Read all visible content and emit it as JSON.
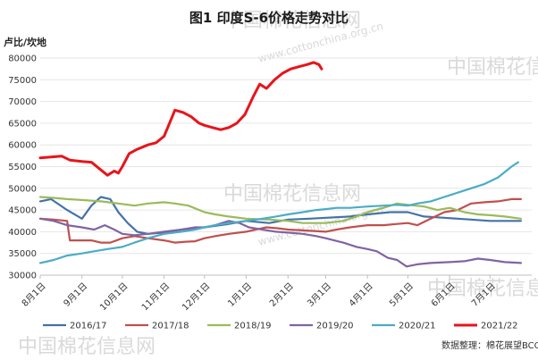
{
  "title": "图1 印度S-6价格走势对比",
  "unit_label": "卢比/坎地",
  "source": "数据整理：棉花展望BCO",
  "watermark": {
    "cn": "中国棉花信息网",
    "url": "www.cottonchina.org.cn"
  },
  "chart_data": {
    "type": "line",
    "title": "图1 印度S-6价格走势对比",
    "ylabel": "卢比/坎地",
    "ylim": [
      30000,
      80000
    ],
    "yticks": [
      30000,
      35000,
      40000,
      45000,
      50000,
      55000,
      60000,
      65000,
      70000,
      75000,
      80000
    ],
    "x_range_days": [
      0,
      365
    ],
    "x_ticks": [
      {
        "label": "8月1日",
        "day": 0
      },
      {
        "label": "9月1日",
        "day": 31
      },
      {
        "label": "10月1日",
        "day": 61
      },
      {
        "label": "11月1日",
        "day": 92
      },
      {
        "label": "12月1日",
        "day": 122
      },
      {
        "label": "1月1日",
        "day": 153
      },
      {
        "label": "2月1日",
        "day": 184
      },
      {
        "label": "3月1日",
        "day": 212
      },
      {
        "label": "4月1日",
        "day": 243
      },
      {
        "label": "5月1日",
        "day": 273
      },
      {
        "label": "6月1日",
        "day": 304
      },
      {
        "label": "7月1日",
        "day": 334
      }
    ],
    "legend_position": "bottom",
    "series": [
      {
        "name": "2016/17",
        "color": "#4472a8",
        "width": 2.2,
        "points": [
          [
            0,
            47000
          ],
          [
            8,
            47500
          ],
          [
            20,
            45000
          ],
          [
            31,
            43000
          ],
          [
            38,
            46000
          ],
          [
            45,
            48000
          ],
          [
            52,
            47500
          ],
          [
            58,
            44500
          ],
          [
            65,
            42000
          ],
          [
            72,
            40000
          ],
          [
            80,
            39500
          ],
          [
            92,
            39800
          ],
          [
            105,
            40500
          ],
          [
            122,
            41000
          ],
          [
            140,
            41800
          ],
          [
            153,
            42500
          ],
          [
            170,
            42000
          ],
          [
            184,
            42800
          ],
          [
            200,
            43000
          ],
          [
            212,
            43200
          ],
          [
            230,
            43500
          ],
          [
            243,
            44000
          ],
          [
            260,
            44500
          ],
          [
            273,
            44500
          ],
          [
            285,
            43500
          ],
          [
            300,
            43200
          ],
          [
            310,
            43000
          ],
          [
            320,
            42800
          ],
          [
            334,
            42500
          ],
          [
            350,
            42500
          ],
          [
            357,
            42500
          ]
        ]
      },
      {
        "name": "2017/18",
        "color": "#c0504d",
        "width": 2.2,
        "points": [
          [
            0,
            43000
          ],
          [
            10,
            42800
          ],
          [
            20,
            42500
          ],
          [
            22,
            38000
          ],
          [
            31,
            38000
          ],
          [
            38,
            38000
          ],
          [
            45,
            37500
          ],
          [
            52,
            37500
          ],
          [
            61,
            38500
          ],
          [
            70,
            39000
          ],
          [
            80,
            38500
          ],
          [
            92,
            38000
          ],
          [
            100,
            37500
          ],
          [
            108,
            37700
          ],
          [
            115,
            37800
          ],
          [
            122,
            38500
          ],
          [
            130,
            39000
          ],
          [
            140,
            39500
          ],
          [
            153,
            40000
          ],
          [
            160,
            40500
          ],
          [
            168,
            41000
          ],
          [
            176,
            40800
          ],
          [
            184,
            40500
          ],
          [
            195,
            40300
          ],
          [
            212,
            40000
          ],
          [
            220,
            40500
          ],
          [
            230,
            41000
          ],
          [
            243,
            41500
          ],
          [
            255,
            41500
          ],
          [
            265,
            41800
          ],
          [
            273,
            42000
          ],
          [
            280,
            41500
          ],
          [
            290,
            43000
          ],
          [
            300,
            44500
          ],
          [
            310,
            45000
          ],
          [
            320,
            46500
          ],
          [
            330,
            46800
          ],
          [
            340,
            47000
          ],
          [
            350,
            47500
          ],
          [
            357,
            47500
          ]
        ]
      },
      {
        "name": "2018/19",
        "color": "#9bbb59",
        "width": 2.2,
        "points": [
          [
            0,
            48000
          ],
          [
            10,
            47800
          ],
          [
            20,
            47500
          ],
          [
            31,
            47300
          ],
          [
            45,
            47000
          ],
          [
            58,
            46500
          ],
          [
            70,
            46000
          ],
          [
            80,
            46500
          ],
          [
            92,
            46800
          ],
          [
            100,
            46500
          ],
          [
            110,
            46000
          ],
          [
            122,
            44500
          ],
          [
            130,
            44000
          ],
          [
            140,
            43500
          ],
          [
            153,
            43000
          ],
          [
            170,
            42800
          ],
          [
            184,
            42500
          ],
          [
            195,
            42000
          ],
          [
            212,
            42000
          ],
          [
            225,
            42500
          ],
          [
            235,
            43500
          ],
          [
            243,
            44500
          ],
          [
            255,
            45500
          ],
          [
            265,
            46500
          ],
          [
            273,
            46200
          ],
          [
            285,
            45800
          ],
          [
            295,
            45000
          ],
          [
            304,
            45500
          ],
          [
            315,
            44500
          ],
          [
            325,
            44000
          ],
          [
            334,
            43800
          ],
          [
            345,
            43500
          ],
          [
            357,
            43000
          ]
        ]
      },
      {
        "name": "2019/20",
        "color": "#8064a2",
        "width": 2.2,
        "points": [
          [
            0,
            43000
          ],
          [
            10,
            42500
          ],
          [
            20,
            41500
          ],
          [
            31,
            41000
          ],
          [
            40,
            40500
          ],
          [
            48,
            41500
          ],
          [
            55,
            40500
          ],
          [
            61,
            39500
          ],
          [
            70,
            39200
          ],
          [
            80,
            39500
          ],
          [
            92,
            40000
          ],
          [
            105,
            40500
          ],
          [
            115,
            41000
          ],
          [
            122,
            41000
          ],
          [
            130,
            41500
          ],
          [
            140,
            42500
          ],
          [
            148,
            42000
          ],
          [
            155,
            41000
          ],
          [
            165,
            40500
          ],
          [
            175,
            40000
          ],
          [
            184,
            39800
          ],
          [
            195,
            39500
          ],
          [
            205,
            39000
          ],
          [
            212,
            38500
          ],
          [
            225,
            37500
          ],
          [
            235,
            36500
          ],
          [
            243,
            36000
          ],
          [
            250,
            35500
          ],
          [
            258,
            34000
          ],
          [
            265,
            33500
          ],
          [
            272,
            32000
          ],
          [
            280,
            32500
          ],
          [
            290,
            32800
          ],
          [
            304,
            33000
          ],
          [
            315,
            33200
          ],
          [
            325,
            33800
          ],
          [
            334,
            33500
          ],
          [
            345,
            33000
          ],
          [
            357,
            32800
          ]
        ]
      },
      {
        "name": "2020/21",
        "color": "#4bacc6",
        "width": 2.2,
        "points": [
          [
            0,
            32800
          ],
          [
            10,
            33500
          ],
          [
            20,
            34500
          ],
          [
            31,
            35000
          ],
          [
            40,
            35500
          ],
          [
            50,
            36000
          ],
          [
            61,
            36500
          ],
          [
            70,
            37500
          ],
          [
            80,
            38500
          ],
          [
            92,
            39500
          ],
          [
            105,
            40000
          ],
          [
            115,
            40500
          ],
          [
            122,
            41000
          ],
          [
            130,
            41500
          ],
          [
            140,
            42000
          ],
          [
            153,
            42500
          ],
          [
            165,
            43000
          ],
          [
            175,
            43500
          ],
          [
            184,
            44000
          ],
          [
            195,
            44500
          ],
          [
            205,
            45000
          ],
          [
            212,
            45200
          ],
          [
            220,
            45500
          ],
          [
            230,
            45500
          ],
          [
            243,
            45800
          ],
          [
            255,
            46000
          ],
          [
            265,
            46200
          ],
          [
            273,
            46000
          ],
          [
            280,
            46500
          ],
          [
            290,
            47000
          ],
          [
            300,
            48000
          ],
          [
            310,
            49000
          ],
          [
            320,
            50000
          ],
          [
            330,
            51000
          ],
          [
            340,
            52500
          ],
          [
            350,
            55000
          ],
          [
            355,
            56000
          ]
        ]
      },
      {
        "name": "2021/22",
        "color": "#e8141a",
        "width": 3,
        "points": [
          [
            0,
            57000
          ],
          [
            8,
            57200
          ],
          [
            16,
            57400
          ],
          [
            22,
            56500
          ],
          [
            31,
            56200
          ],
          [
            38,
            56000
          ],
          [
            44,
            54500
          ],
          [
            50,
            53000
          ],
          [
            55,
            54000
          ],
          [
            58,
            53500
          ],
          [
            61,
            55000
          ],
          [
            66,
            58000
          ],
          [
            72,
            59000
          ],
          [
            80,
            60000
          ],
          [
            86,
            60500
          ],
          [
            92,
            62000
          ],
          [
            96,
            65000
          ],
          [
            100,
            68000
          ],
          [
            106,
            67500
          ],
          [
            112,
            66500
          ],
          [
            118,
            65000
          ],
          [
            122,
            64500
          ],
          [
            128,
            64000
          ],
          [
            134,
            63500
          ],
          [
            140,
            64000
          ],
          [
            146,
            65000
          ],
          [
            152,
            67000
          ],
          [
            158,
            71000
          ],
          [
            163,
            74000
          ],
          [
            168,
            73000
          ],
          [
            174,
            75000
          ],
          [
            180,
            76500
          ],
          [
            186,
            77500
          ],
          [
            192,
            78000
          ],
          [
            198,
            78500
          ],
          [
            203,
            79000
          ],
          [
            207,
            78500
          ],
          [
            209,
            77500
          ]
        ]
      }
    ]
  }
}
